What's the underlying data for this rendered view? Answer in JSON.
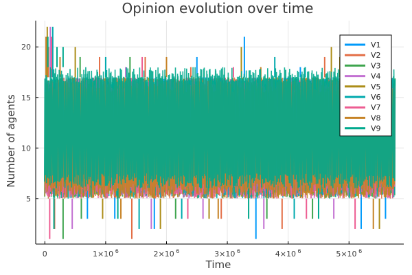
{
  "chart_data": {
    "type": "line",
    "title": "Opinion evolution over time",
    "xlabel": "Time",
    "ylabel": "Number of agents",
    "xlim": [
      -150000,
      5900000
    ],
    "ylim": [
      0.5,
      22.6
    ],
    "x_ticks": [
      {
        "value": 0,
        "label": "0",
        "exponent": ""
      },
      {
        "value": 1000000,
        "label": "1×10",
        "exponent": "6"
      },
      {
        "value": 2000000,
        "label": "2×10",
        "exponent": "6"
      },
      {
        "value": 3000000,
        "label": "3×10",
        "exponent": "6"
      },
      {
        "value": 4000000,
        "label": "4×10",
        "exponent": "6"
      },
      {
        "value": 5000000,
        "label": "5×10",
        "exponent": "6"
      }
    ],
    "y_ticks": [
      {
        "value": 5,
        "label": "5"
      },
      {
        "value": 10,
        "label": "10"
      },
      {
        "value": 15,
        "label": "15"
      },
      {
        "value": 20,
        "label": "20"
      }
    ],
    "grid": true,
    "legend_position": "top-right",
    "series": [
      {
        "name": "V1",
        "color": "#009AFA",
        "x_start": 0,
        "x_end": 5750000,
        "body_low": 6,
        "body_high": 17,
        "spikes": [
          [
            3280000,
            21
          ],
          [
            3470000,
            1
          ],
          [
            1800000,
            2
          ],
          [
            5200000,
            2
          ],
          [
            2500000,
            19
          ],
          [
            700000,
            3
          ],
          [
            1150000,
            3
          ],
          [
            4200000,
            18
          ],
          [
            5600000,
            3
          ]
        ]
      },
      {
        "name": "V2",
        "color": "#E36F47",
        "x_start": 0,
        "x_end": 5750000,
        "body_low": 5,
        "body_high": 17,
        "spikes": [
          [
            60000,
            20
          ],
          [
            160000,
            2
          ],
          [
            1430000,
            1
          ],
          [
            1650000,
            19
          ],
          [
            2400000,
            18
          ],
          [
            3900000,
            2
          ],
          [
            4600000,
            19
          ],
          [
            5400000,
            18
          ],
          [
            2900000,
            3
          ],
          [
            900000,
            19
          ]
        ]
      },
      {
        "name": "V3",
        "color": "#3EA44E",
        "x_start": 0,
        "x_end": 5750000,
        "body_low": 5,
        "body_high": 17,
        "spikes": [
          [
            300000,
            1
          ],
          [
            580000,
            19
          ],
          [
            1400000,
            19
          ],
          [
            2150000,
            3
          ],
          [
            3650000,
            3
          ],
          [
            4400000,
            3
          ],
          [
            5050000,
            18
          ],
          [
            600000,
            3
          ]
        ]
      },
      {
        "name": "V4",
        "color": "#C371D2",
        "x_start": 0,
        "x_end": 5750000,
        "body_low": 5,
        "body_high": 17,
        "spikes": [
          [
            90000,
            22
          ],
          [
            1330000,
            18
          ],
          [
            1750000,
            2
          ],
          [
            2600000,
            3
          ],
          [
            3600000,
            2
          ],
          [
            4750000,
            3
          ],
          [
            5300000,
            18
          ],
          [
            450000,
            2
          ]
        ]
      },
      {
        "name": "V5",
        "color": "#AC8D18",
        "x_start": 0,
        "x_end": 5750000,
        "body_low": 5,
        "body_high": 17,
        "spikes": [
          [
            40000,
            22
          ],
          [
            500000,
            20
          ],
          [
            3230000,
            20
          ],
          [
            4710000,
            20
          ],
          [
            4850000,
            19
          ],
          [
            1900000,
            2
          ],
          [
            5500000,
            2
          ],
          [
            2700000,
            3
          ],
          [
            950000,
            3
          ]
        ]
      },
      {
        "name": "V6",
        "color": "#00A9AD",
        "x_start": 0,
        "x_end": 5750000,
        "body_low": 5,
        "body_high": 17,
        "spikes": [
          [
            130000,
            22
          ],
          [
            1000000,
            19
          ],
          [
            1550000,
            2
          ],
          [
            3780000,
            19
          ],
          [
            4280000,
            18
          ],
          [
            4100000,
            3
          ],
          [
            5650000,
            18
          ],
          [
            2250000,
            3
          ]
        ]
      },
      {
        "name": "V7",
        "color": "#ED5D92",
        "x_start": 0,
        "x_end": 5750000,
        "body_low": 5,
        "body_high": 17,
        "spikes": [
          [
            80000,
            1
          ],
          [
            110000,
            21
          ],
          [
            1600000,
            19
          ],
          [
            2350000,
            3
          ],
          [
            3100000,
            18
          ],
          [
            4300000,
            3
          ],
          [
            5100000,
            2
          ]
        ]
      },
      {
        "name": "V8",
        "color": "#C68225",
        "x_start": 0,
        "x_end": 5750000,
        "body_low": 5,
        "body_high": 17,
        "spikes": [
          [
            20000,
            21
          ],
          [
            250000,
            19
          ],
          [
            1250000,
            3
          ],
          [
            2000000,
            19
          ],
          [
            2850000,
            3
          ],
          [
            3550000,
            18
          ],
          [
            5400000,
            2
          ],
          [
            4950000,
            18
          ]
        ]
      },
      {
        "name": "V9",
        "color": "#00A98D",
        "x_start": 0,
        "x_end": 5750000,
        "body_low": 6,
        "body_high": 18,
        "spikes": [
          [
            50000,
            21
          ],
          [
            200000,
            20
          ],
          [
            300000,
            20
          ],
          [
            1100000,
            18
          ],
          [
            2050000,
            18
          ],
          [
            2900000,
            18
          ],
          [
            3900000,
            18
          ],
          [
            4600000,
            18
          ],
          [
            5500000,
            18
          ],
          [
            150000,
            2
          ],
          [
            1200000,
            3
          ],
          [
            3350000,
            3
          ],
          [
            4500000,
            3
          ]
        ]
      }
    ]
  }
}
